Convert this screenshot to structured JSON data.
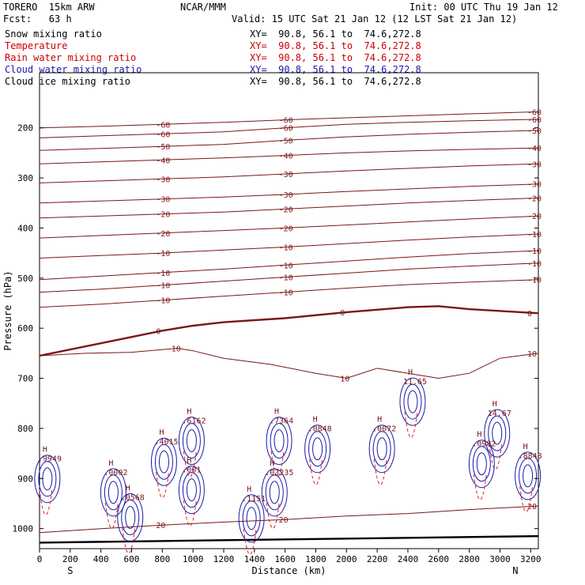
{
  "header": {
    "model": "TORERO  15km ARW",
    "org": "NCAR/MMM",
    "init": "Init: 00 UTC Thu 19 Jan 12",
    "fcst": "Fcst:   63 h",
    "valid": "Valid: 15 UTC Sat 21 Jan 12 (12 LST Sat 21 Jan 12)"
  },
  "legend": [
    {
      "name": "Snow mixing ratio",
      "xy": "XY=  90.8, 56.1 to  74.6,272.8",
      "color": "#000000"
    },
    {
      "name": "Temperature",
      "xy": "XY=  90.8, 56.1 to  74.6,272.8",
      "color": "#cc0000"
    },
    {
      "name": "Rain water mixing ratio",
      "xy": "XY=  90.8, 56.1 to  74.6,272.8",
      "color": "#cc0000"
    },
    {
      "name": "Cloud water mixing ratio",
      "xy": "XY=  90.8, 56.1 to  74.6,272.8",
      "color": "#1a1aa8"
    },
    {
      "name": "Cloud ice mixing ratio",
      "xy": "XY=  90.8, 56.1 to  74.6,272.8",
      "color": "#000000"
    }
  ],
  "chart_data": {
    "type": "line",
    "xlabel": "Distance (km)",
    "ylabel": "Pressure (hPa)",
    "xlim": [
      0,
      3250
    ],
    "ylim": [
      1040,
      90
    ],
    "x_ticks": [
      0,
      200,
      400,
      600,
      800,
      1000,
      1200,
      1400,
      1600,
      1800,
      2000,
      2200,
      2400,
      2600,
      2800,
      3000,
      3200
    ],
    "y_ticks": [
      200,
      300,
      400,
      500,
      600,
      700,
      800,
      900,
      1000
    ],
    "x_endpoints": {
      "left": "S",
      "right": "N"
    },
    "colors": {
      "temperature": "#7a1616",
      "rain": "#dd2222",
      "cloud": "#1a1aa8",
      "ground": "#000000"
    },
    "isotherms": [
      {
        "label": "-60",
        "x": [
          0,
          400,
          800,
          1200,
          1600,
          2000,
          2400,
          2800,
          3250
        ],
        "p": [
          200,
          197,
          193,
          189,
          184,
          180,
          176,
          172,
          168
        ]
      },
      {
        "label": "-60",
        "x": [
          0,
          400,
          800,
          1200,
          1600,
          2000,
          2400,
          2800,
          3250
        ],
        "p": [
          220,
          216,
          212,
          208,
          200,
          193,
          189,
          186,
          183
        ]
      },
      {
        "label": "-50",
        "x": [
          0,
          400,
          800,
          1200,
          1600,
          2000,
          2400,
          2800,
          3250
        ],
        "p": [
          245,
          241,
          237,
          233,
          225,
          218,
          213,
          209,
          205
        ]
      },
      {
        "label": "-40",
        "x": [
          0,
          400,
          800,
          1200,
          1600,
          2000,
          2400,
          2800,
          3250
        ],
        "p": [
          272,
          268,
          264,
          260,
          255,
          250,
          246,
          243,
          240
        ]
      },
      {
        "label": "-30",
        "x": [
          0,
          400,
          800,
          1200,
          1600,
          2000,
          2400,
          2800,
          3250
        ],
        "p": [
          310,
          306,
          302,
          298,
          292,
          286,
          281,
          276,
          272
        ]
      },
      {
        "label": "-30",
        "x": [
          0,
          400,
          800,
          1200,
          1600,
          2000,
          2400,
          2800,
          3250
        ],
        "p": [
          350,
          346,
          342,
          338,
          333,
          327,
          322,
          317,
          312
        ]
      },
      {
        "label": "-20",
        "x": [
          0,
          400,
          800,
          1200,
          1600,
          2000,
          2400,
          2800,
          3250
        ],
        "p": [
          380,
          376,
          372,
          368,
          362,
          356,
          350,
          345,
          340
        ]
      },
      {
        "label": "-20",
        "x": [
          0,
          400,
          800,
          1200,
          1600,
          2000,
          2400,
          2800,
          3250
        ],
        "p": [
          420,
          415,
          410,
          405,
          400,
          394,
          388,
          382,
          376
        ]
      },
      {
        "label": "-10",
        "x": [
          0,
          400,
          800,
          1200,
          1600,
          2000,
          2400,
          2800,
          3250
        ],
        "p": [
          460,
          455,
          450,
          444,
          438,
          431,
          424,
          418,
          412
        ]
      },
      {
        "label": "-10",
        "x": [
          0,
          400,
          800,
          1200,
          1600,
          2000,
          2400,
          2800,
          3250
        ],
        "p": [
          503,
          496,
          489,
          482,
          474,
          466,
          458,
          451,
          445
        ]
      },
      {
        "label": "-10",
        "x": [
          0,
          400,
          800,
          1200,
          1600,
          2000,
          2400,
          2800,
          3250
        ],
        "p": [
          528,
          522,
          514,
          506,
          498,
          490,
          482,
          476,
          470
        ]
      },
      {
        "label": "-10",
        "x": [
          0,
          400,
          800,
          1200,
          1600,
          2000,
          2400,
          2800,
          3250
        ],
        "p": [
          558,
          552,
          544,
          536,
          528,
          520,
          513,
          508,
          503
        ]
      },
      {
        "label": "0",
        "x": [
          0,
          400,
          800,
          1000,
          1200,
          1600,
          2000,
          2400,
          2600,
          2800,
          3250
        ],
        "p": [
          655,
          630,
          605,
          595,
          588,
          580,
          568,
          558,
          556,
          562,
          570
        ]
      },
      {
        "label": "10",
        "x": [
          0,
          300,
          600,
          900,
          1000,
          1200,
          1500,
          1800,
          2000,
          2200,
          2400,
          2600,
          2800,
          3000,
          3250
        ],
        "p": [
          655,
          650,
          648,
          640,
          645,
          660,
          672,
          690,
          700,
          680,
          690,
          700,
          690,
          660,
          650
        ]
      },
      {
        "label": "20",
        "x": [
          0,
          400,
          800,
          1200,
          1600,
          2000,
          2400,
          2800,
          3250
        ],
        "p": [
          1008,
          1000,
          993,
          987,
          982,
          975,
          970,
          962,
          955
        ]
      }
    ],
    "ground_line": {
      "x": [
        0,
        3250
      ],
      "p": [
        1028,
        1015
      ]
    },
    "max_labels": [
      {
        "text": "11.65",
        "x": 2400,
        "p": 712
      },
      {
        "text": "14.67",
        "x": 2950,
        "p": 775
      },
      {
        "text": ".6162",
        "x": 960,
        "p": 790
      },
      {
        "text": ".4015",
        "x": 780,
        "p": 832
      },
      {
        "text": ".7364",
        "x": 1530,
        "p": 790
      },
      {
        "text": ".0848",
        "x": 1780,
        "p": 806
      },
      {
        "text": ".0072",
        "x": 2200,
        "p": 806
      },
      {
        "text": ".0002",
        "x": 450,
        "p": 893
      },
      {
        "text": ".0568",
        "x": 560,
        "p": 943
      },
      {
        "text": ".1151",
        "x": 1350,
        "p": 945
      },
      {
        "text": ".03235",
        "x": 1500,
        "p": 893
      },
      {
        "text": ".0982",
        "x": 2850,
        "p": 836
      },
      {
        "text": ".8848",
        "x": 3150,
        "p": 860
      },
      {
        "text": ".9949",
        "x": 20,
        "p": 866
      },
      {
        "text": ".001",
        "x": 960,
        "p": 888
      }
    ]
  }
}
